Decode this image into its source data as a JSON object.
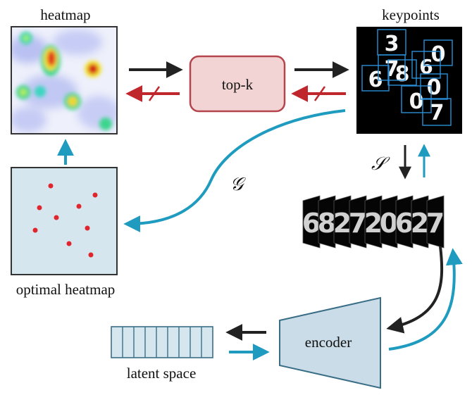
{
  "labels": {
    "heatmap": "heatmap",
    "keypoints": "keypoints",
    "topk": "top-k",
    "optimal_heatmap": "optimal heatmap",
    "encoder": "encoder",
    "latent_space": "latent space",
    "s_symbol": "𝒮",
    "g_symbol": "𝒢"
  },
  "keypoint_digits": [
    "3",
    "0",
    "7",
    "6",
    "8",
    "6",
    "0",
    "0",
    "7"
  ],
  "patch_digits": [
    "6",
    "8",
    "2",
    "7",
    "2",
    "0",
    "6",
    "2",
    "7"
  ],
  "latent_cells": 9,
  "colors": {
    "forward_arrow": "#222222",
    "backward_arrow": "#1e9bbf",
    "blocked_arrow": "#c0272d",
    "topk_fill": "#f3d4d4",
    "topk_stroke": "#b5454c",
    "panel_fill": "#d6e6ef",
    "keypoint_box": "#2a8fd8"
  }
}
